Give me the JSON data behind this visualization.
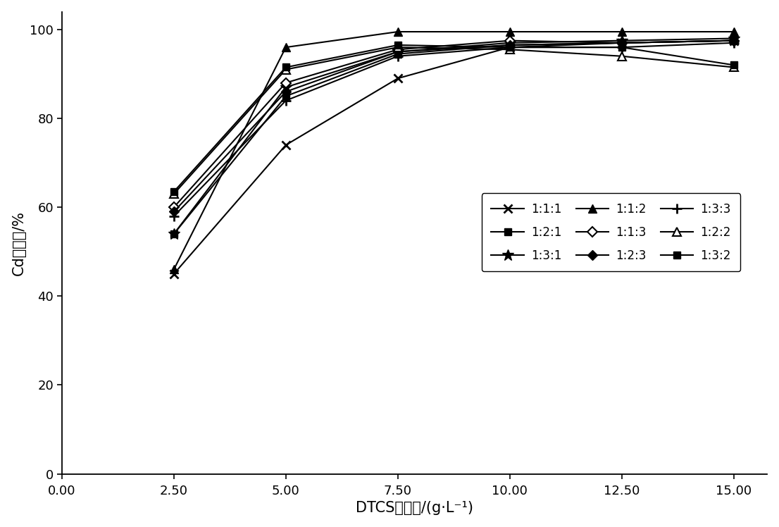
{
  "x": [
    2.5,
    5.0,
    7.5,
    10.0,
    12.5,
    15.0
  ],
  "series": {
    "1:1:1": {
      "y": [
        45.0,
        74.0,
        89.0,
        96.0,
        97.0,
        97.5
      ]
    },
    "1:2:1": {
      "y": [
        54.0,
        85.0,
        94.5,
        96.5,
        97.0,
        97.5
      ]
    },
    "1:3:1": {
      "y": [
        54.0,
        87.0,
        95.0,
        97.0,
        97.5,
        98.0
      ]
    },
    "1:1:2": {
      "y": [
        46.0,
        96.0,
        99.5,
        99.5,
        99.5,
        99.5
      ]
    },
    "1:1:3": {
      "y": [
        60.0,
        88.0,
        95.5,
        97.5,
        97.0,
        97.5
      ]
    },
    "1:2:3": {
      "y": [
        59.0,
        86.0,
        95.0,
        96.5,
        97.0,
        97.5
      ]
    },
    "1:3:3": {
      "y": [
        58.0,
        84.0,
        94.0,
        96.0,
        96.0,
        97.0
      ]
    },
    "1:2:2": {
      "y": [
        63.0,
        91.0,
        96.0,
        95.5,
        94.0,
        91.5
      ]
    },
    "1:3:2": {
      "y": [
        63.5,
        91.5,
        96.5,
        96.0,
        96.0,
        92.0
      ]
    }
  },
  "legend_order": [
    "1:1:1",
    "1:2:1",
    "1:3:1",
    "1:1:2",
    "1:1:3",
    "1:2:3",
    "1:3:3",
    "1:2:2",
    "1:3:2"
  ],
  "xlabel": "DTCS投加量/(g·L⁻¹)",
  "ylabel": "Cd去除率/%",
  "xlim": [
    0.0,
    15.75
  ],
  "ylim": [
    0,
    104
  ],
  "xticks": [
    0.0,
    2.5,
    5.0,
    7.5,
    10.0,
    12.5,
    15.0
  ],
  "yticks": [
    0,
    20,
    40,
    60,
    80,
    100
  ],
  "color": "black",
  "background_color": "#ffffff",
  "fontsize_axis_label": 15,
  "fontsize_ticks": 13,
  "fontsize_legend": 12,
  "legend_ncol": 3
}
